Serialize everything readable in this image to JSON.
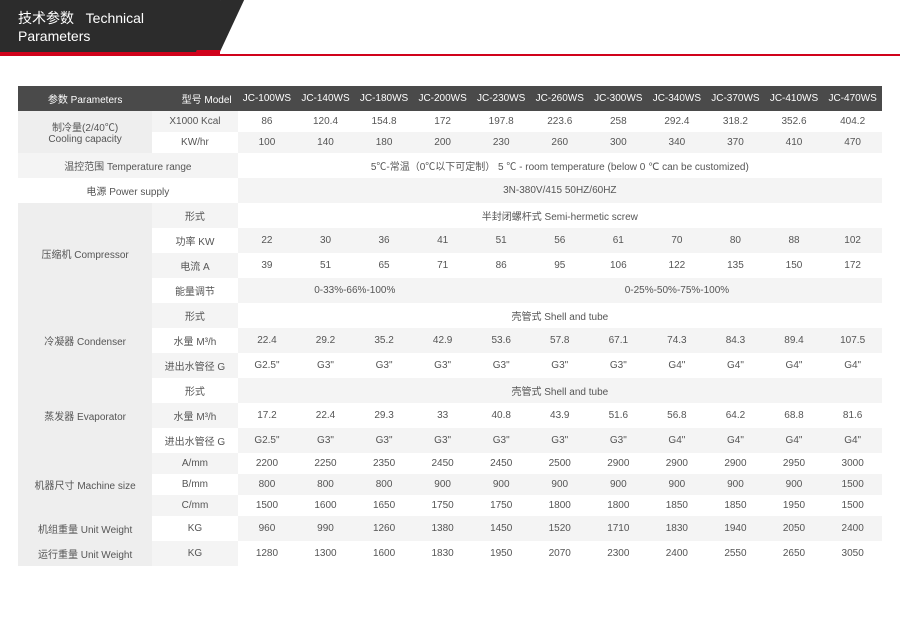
{
  "header": {
    "title_cn": "技术参数",
    "title_en": "Technical Parameters"
  },
  "labels": {
    "parameters": "参数 Parameters",
    "model": "型号 Model",
    "cooling_cn": "制冷量(2/40℃)",
    "cooling_en": "Cooling capacity",
    "kcal": "X1000 Kcal",
    "kwhr": "KW/hr",
    "temp_range": "温控范围 Temperature range",
    "temp_value": "5℃-常温（0℃以下可定制） 5 ℃ - room temperature (below 0 ℃ can be customized)",
    "power": "电源 Power supply",
    "power_value": "3N-380V/415   50HZ/60HZ",
    "compressor": "压缩机 Compressor",
    "form": "形式",
    "compressor_form": "半封闭螺杆式 Semi-hermetic screw",
    "power_kw": "功率 KW",
    "current_a": "电流 A",
    "energy_adj": "能量调节",
    "energy_a": "0-33%-66%-100%",
    "energy_b": "0-25%-50%-75%-100%",
    "condenser": "冷凝器 Condenser",
    "shelltube": "壳管式 Shell and tube",
    "water_m3h": "水量 M³/h",
    "pipe_g": "进出水管径 G",
    "evaporator": "蒸发器 Evaporator",
    "machine_size": "机器尺寸 Machine size",
    "a_mm": "A/mm",
    "b_mm": "B/mm",
    "c_mm": "C/mm",
    "unit_weight_set": "机组重量 Unit Weight",
    "unit_weight_op": "运行重量 Unit Weight",
    "kg": "KG"
  },
  "models": [
    "JC-100WS",
    "JC-140WS",
    "JC-180WS",
    "JC-200WS",
    "JC-230WS",
    "JC-260WS",
    "JC-300WS",
    "JC-340WS",
    "JC-370WS",
    "JC-410WS",
    "JC-470WS"
  ],
  "rows": {
    "kcal": [
      "86",
      "120.4",
      "154.8",
      "172",
      "197.8",
      "223.6",
      "258",
      "292.4",
      "318.2",
      "352.6",
      "404.2"
    ],
    "kwhr": [
      "100",
      "140",
      "180",
      "200",
      "230",
      "260",
      "300",
      "340",
      "370",
      "410",
      "470"
    ],
    "pkw": [
      "22",
      "30",
      "36",
      "41",
      "51",
      "56",
      "61",
      "70",
      "80",
      "88",
      "102"
    ],
    "cura": [
      "39",
      "51",
      "65",
      "71",
      "86",
      "95",
      "106",
      "122",
      "135",
      "150",
      "172"
    ],
    "cond_w": [
      "22.4",
      "29.2",
      "35.2",
      "42.9",
      "53.6",
      "57.8",
      "67.1",
      "74.3",
      "84.3",
      "89.4",
      "107.5"
    ],
    "cond_g": [
      "G2.5\"",
      "G3\"",
      "G3\"",
      "G3\"",
      "G3\"",
      "G3\"",
      "G3\"",
      "G4\"",
      "G4\"",
      "G4\"",
      "G4\""
    ],
    "evap_w": [
      "17.2",
      "22.4",
      "29.3",
      "33",
      "40.8",
      "43.9",
      "51.6",
      "56.8",
      "64.2",
      "68.8",
      "81.6"
    ],
    "evap_g": [
      "G2.5\"",
      "G3\"",
      "G3\"",
      "G3\"",
      "G3\"",
      "G3\"",
      "G3\"",
      "G4\"",
      "G4\"",
      "G4\"",
      "G4\""
    ],
    "a_mm": [
      "2200",
      "2250",
      "2350",
      "2450",
      "2450",
      "2500",
      "2900",
      "2900",
      "2900",
      "2950",
      "3000"
    ],
    "b_mm": [
      "800",
      "800",
      "800",
      "900",
      "900",
      "900",
      "900",
      "900",
      "900",
      "900",
      "1500"
    ],
    "c_mm": [
      "1500",
      "1600",
      "1650",
      "1750",
      "1750",
      "1800",
      "1800",
      "1850",
      "1850",
      "1950",
      "1500"
    ],
    "w_set": [
      "960",
      "990",
      "1260",
      "1380",
      "1450",
      "1520",
      "1710",
      "1830",
      "1940",
      "2050",
      "2400"
    ],
    "w_op": [
      "1280",
      "1300",
      "1600",
      "1830",
      "1950",
      "2070",
      "2300",
      "2400",
      "2550",
      "2650",
      "3050"
    ]
  }
}
